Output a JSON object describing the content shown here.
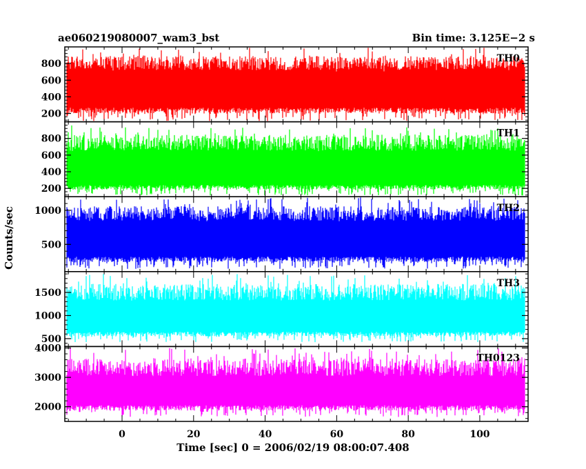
{
  "chart_data": {
    "type": "line",
    "title": "ae060219080007_wam3_bst",
    "bin_time": "Bin time: 3.125E−2 s",
    "xlabel": "Time [sec] 0 = 2006/02/19 08:00:07.408",
    "ylabel": "Counts/sec",
    "xlim": [
      -16,
      113.5
    ],
    "x_ticks": [
      0,
      20,
      40,
      60,
      80,
      100
    ],
    "data_x_range": [
      -15.5,
      112.5
    ],
    "panels": [
      {
        "name": "TH0",
        "color": "#ff0000",
        "ylim": [
          100,
          1000
        ],
        "y_ticks": [
          200,
          400,
          600,
          800
        ],
        "band_low": 270,
        "band_high": 780,
        "max_peak": 990,
        "min_dip": 110
      },
      {
        "name": "TH1",
        "color": "#00ff00",
        "ylim": [
          100,
          1000
        ],
        "y_ticks": [
          200,
          400,
          600,
          800
        ],
        "band_low": 240,
        "band_high": 720,
        "max_peak": 960,
        "min_dip": 115
      },
      {
        "name": "TH2",
        "color": "#0000ff",
        "ylim": [
          100,
          1200
        ],
        "y_ticks": [
          500,
          1000
        ],
        "band_low": 320,
        "band_high": 920,
        "max_peak": 1190,
        "min_dip": 140
      },
      {
        "name": "TH3",
        "color": "#00ffff",
        "ylim": [
          330,
          1950
        ],
        "y_ticks": [
          500,
          1000,
          1500
        ],
        "band_low": 650,
        "band_high": 1450,
        "max_peak": 1900,
        "min_dip": 420
      },
      {
        "name": "TH0123",
        "color": "#ff00ff",
        "ylim": [
          1500,
          4050
        ],
        "y_ticks": [
          2000,
          3000,
          4000
        ],
        "band_low": 2050,
        "band_high": 3250,
        "max_peak": 4000,
        "min_dip": 1650
      }
    ]
  }
}
